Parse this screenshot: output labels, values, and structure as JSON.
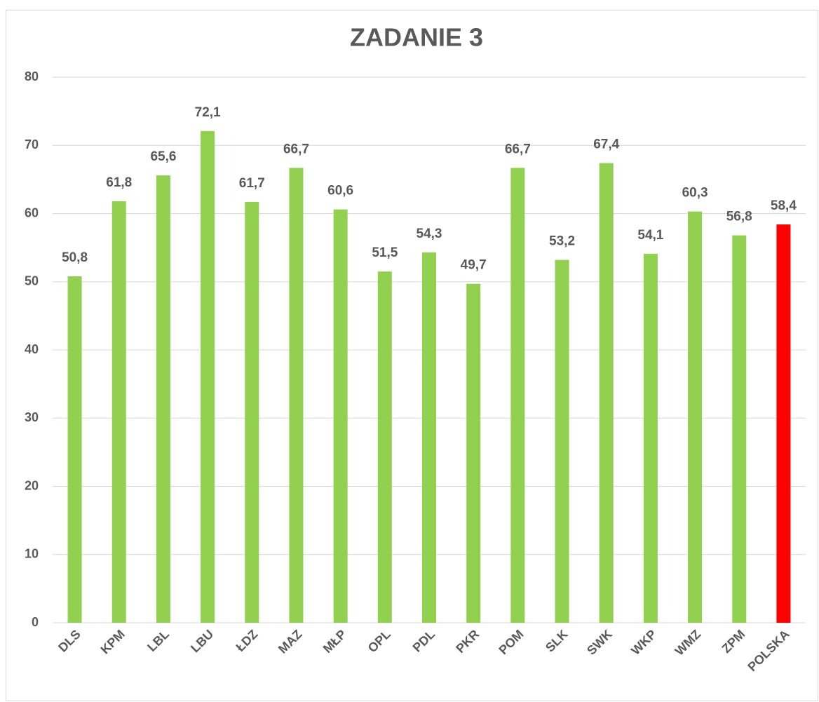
{
  "chart_data": {
    "type": "bar",
    "title": "ZADANIE 3",
    "categories": [
      "DLS",
      "KPM",
      "LBL",
      "LBU",
      "ŁDZ",
      "MAZ",
      "MŁP",
      "OPL",
      "PDL",
      "PKR",
      "POM",
      "SLK",
      "SWK",
      "WKP",
      "WMZ",
      "ZPM",
      "POLSKA"
    ],
    "values": [
      50.8,
      61.8,
      65.6,
      72.1,
      61.7,
      66.7,
      60.6,
      51.5,
      54.3,
      49.7,
      66.7,
      53.2,
      67.4,
      54.1,
      60.3,
      56.8,
      58.4
    ],
    "value_labels": [
      "50,8",
      "61,8",
      "65,6",
      "72,1",
      "61,7",
      "66,7",
      "60,6",
      "51,5",
      "54,3",
      "49,7",
      "66,7",
      "53,2",
      "67,4",
      "54,1",
      "60,3",
      "56,8",
      "58,4"
    ],
    "colors": [
      "#92d050",
      "#92d050",
      "#92d050",
      "#92d050",
      "#92d050",
      "#92d050",
      "#92d050",
      "#92d050",
      "#92d050",
      "#92d050",
      "#92d050",
      "#92d050",
      "#92d050",
      "#92d050",
      "#92d050",
      "#92d050",
      "#ff0000"
    ],
    "ylim": [
      0,
      80
    ],
    "yticks": [
      0,
      10,
      20,
      30,
      40,
      50,
      60,
      70,
      80
    ],
    "grid": true
  }
}
